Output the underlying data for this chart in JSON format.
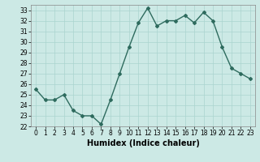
{
  "x": [
    0,
    1,
    2,
    3,
    4,
    5,
    6,
    7,
    8,
    9,
    10,
    11,
    12,
    13,
    14,
    15,
    16,
    17,
    18,
    19,
    20,
    21,
    22,
    23
  ],
  "y": [
    25.5,
    24.5,
    24.5,
    25.0,
    23.5,
    23.0,
    23.0,
    22.2,
    24.5,
    27.0,
    29.5,
    31.8,
    33.2,
    31.5,
    32.0,
    32.0,
    32.5,
    31.8,
    32.8,
    32.0,
    29.5,
    27.5,
    27.0,
    26.5
  ],
  "line_color": "#2e6b5e",
  "marker": "D",
  "markersize": 2.0,
  "linewidth": 1.0,
  "bg_color": "#cce9e5",
  "grid_color": "#aad4cf",
  "xlabel": "Humidex (Indice chaleur)",
  "xlim": [
    -0.5,
    23.5
  ],
  "ylim": [
    22,
    33.5
  ],
  "yticks": [
    22,
    23,
    24,
    25,
    26,
    27,
    28,
    29,
    30,
    31,
    32,
    33
  ],
  "xticks": [
    0,
    1,
    2,
    3,
    4,
    5,
    6,
    7,
    8,
    9,
    10,
    11,
    12,
    13,
    14,
    15,
    16,
    17,
    18,
    19,
    20,
    21,
    22,
    23
  ],
  "tick_fontsize": 5.5,
  "xlabel_fontsize": 7.0
}
